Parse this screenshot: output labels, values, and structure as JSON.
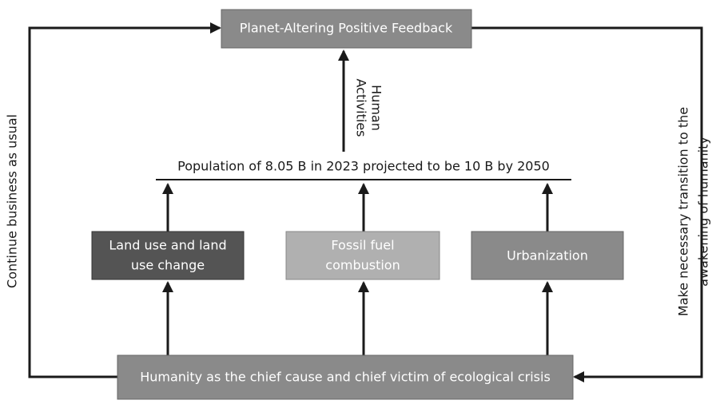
{
  "nodes": [
    {
      "label": "Planet-Altering Positive Feedback"
    },
    {
      "label": "Population of 8.05 B in 2023 projected to be 10 B by 2050"
    },
    {
      "label": [
        "Land use and land",
        "use change"
      ]
    },
    {
      "label": [
        "Fossil fuel",
        "combustion"
      ]
    },
    {
      "label": "Urbanization"
    },
    {
      "label": "Humanity as the chief cause and chief victim of ecological crisis"
    }
  ],
  "edges": [
    {
      "label": [
        "Human",
        "Activities"
      ]
    },
    {
      "label": "Continue business as usual"
    },
    {
      "label": [
        "Make necessary transition to the",
        "awakening of humanity"
      ]
    }
  ]
}
